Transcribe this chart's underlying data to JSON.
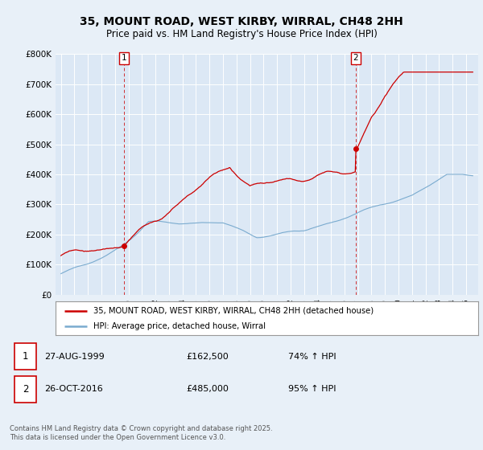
{
  "title": "35, MOUNT ROAD, WEST KIRBY, WIRRAL, CH48 2HH",
  "subtitle": "Price paid vs. HM Land Registry's House Price Index (HPI)",
  "ylim": [
    0,
    800000
  ],
  "yticks": [
    0,
    100000,
    200000,
    300000,
    400000,
    500000,
    600000,
    700000,
    800000
  ],
  "ytick_labels": [
    "£0",
    "£100K",
    "£200K",
    "£300K",
    "£400K",
    "£500K",
    "£600K",
    "£700K",
    "£800K"
  ],
  "bg_color": "#e8f0f8",
  "plot_bg_color": "#dce8f5",
  "grid_color": "#ffffff",
  "red_color": "#cc0000",
  "blue_color": "#7aabcf",
  "sale1_year": 1999.65,
  "sale1_price": 162500,
  "sale2_year": 2016.82,
  "sale2_price": 485000,
  "legend_red": "35, MOUNT ROAD, WEST KIRBY, WIRRAL, CH48 2HH (detached house)",
  "legend_blue": "HPI: Average price, detached house, Wirral",
  "footnote": "Contains HM Land Registry data © Crown copyright and database right 2025.\nThis data is licensed under the Open Government Licence v3.0.",
  "xstart": 1995,
  "xend": 2025
}
